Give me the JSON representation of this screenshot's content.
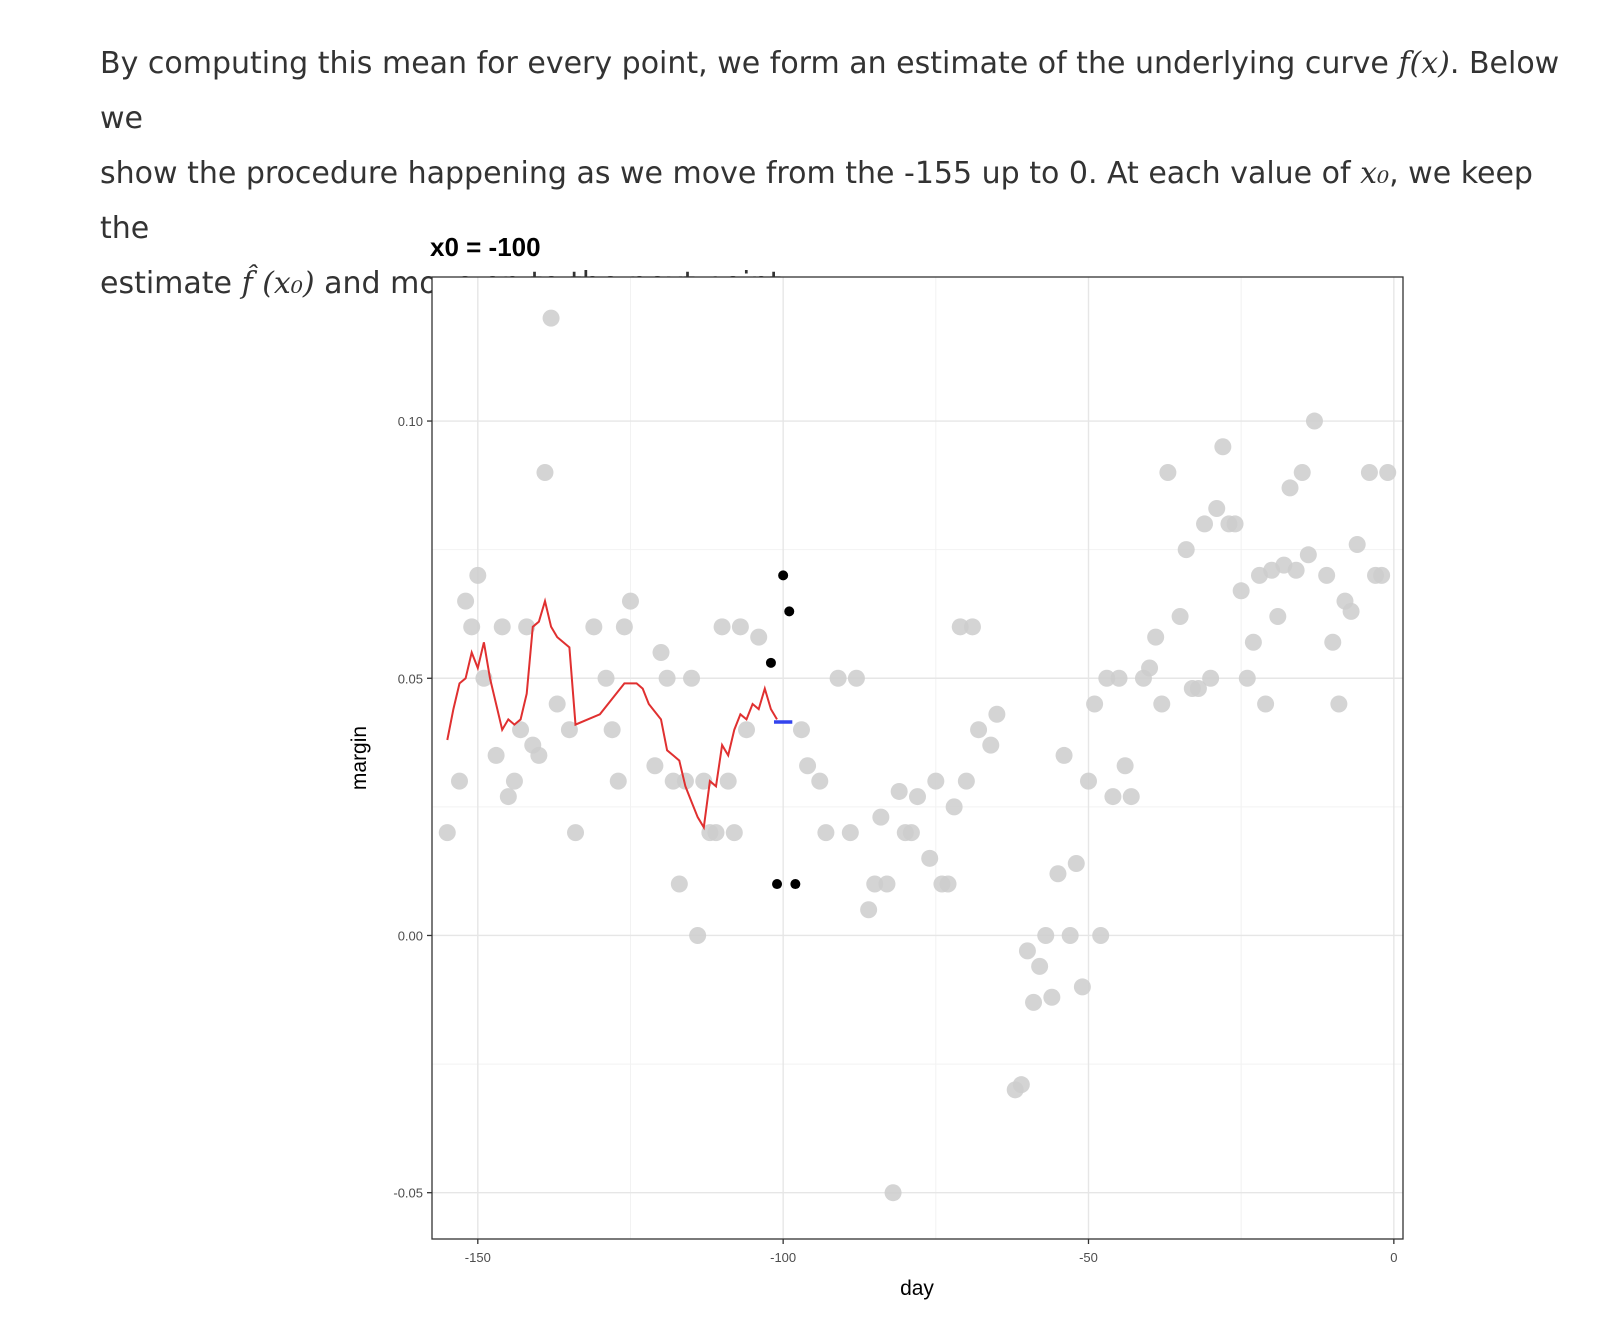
{
  "text": {
    "line1_a": "By computing this mean for every point, we form an estimate of the underlying curve",
    "line1_math": "f(x)",
    "line1_b": ". Below we",
    "line2_a": "show the procedure happening as we move from the -155 up to 0. At each value of",
    "line2_math": "x₀",
    "line2_b": ", we keep the",
    "line3_a": "estimate",
    "line3_math": "f̂ (x₀)",
    "line3_b": "and move on to the next point:"
  },
  "chart_data": {
    "type": "scatter",
    "title": "x0 =  -100",
    "xlabel": "day",
    "ylabel": "margin",
    "xlim": [
      -157.5,
      1.5
    ],
    "ylim": [
      -0.059,
      0.128
    ],
    "x_ticks": [
      -150,
      -100,
      -50,
      0
    ],
    "x_tick_labels": [
      "-150",
      "-100",
      "-50",
      "0"
    ],
    "y_ticks": [
      -0.05,
      0.0,
      0.05,
      0.1
    ],
    "y_tick_labels": [
      "-0.05",
      "0.00",
      "0.05",
      "0.10"
    ],
    "grid": true,
    "colors": {
      "points": "#cccccc",
      "highlight": "#000000",
      "fit": "#e03030",
      "estimate": "#3344ee"
    },
    "points": [
      [
        -155,
        0.02
      ],
      [
        -153,
        0.03
      ],
      [
        -152,
        0.065
      ],
      [
        -151,
        0.06
      ],
      [
        -150,
        0.07
      ],
      [
        -149,
        0.05
      ],
      [
        -147,
        0.035
      ],
      [
        -146,
        0.06
      ],
      [
        -145,
        0.027
      ],
      [
        -144,
        0.03
      ],
      [
        -143,
        0.04
      ],
      [
        -142,
        0.06
      ],
      [
        -141,
        0.037
      ],
      [
        -140,
        0.035
      ],
      [
        -139,
        0.09
      ],
      [
        -138,
        0.12
      ],
      [
        -137,
        0.045
      ],
      [
        -135,
        0.04
      ],
      [
        -134,
        0.02
      ],
      [
        -131,
        0.06
      ],
      [
        -129,
        0.05
      ],
      [
        -128,
        0.04
      ],
      [
        -127,
        0.03
      ],
      [
        -126,
        0.06
      ],
      [
        -125,
        0.065
      ],
      [
        -121,
        0.033
      ],
      [
        -120,
        0.055
      ],
      [
        -119,
        0.05
      ],
      [
        -118,
        0.03
      ],
      [
        -117,
        0.01
      ],
      [
        -116,
        0.03
      ],
      [
        -115,
        0.05
      ],
      [
        -114,
        0.0
      ],
      [
        -113,
        0.03
      ],
      [
        -112,
        0.02
      ],
      [
        -111,
        0.02
      ],
      [
        -110,
        0.06
      ],
      [
        -109,
        0.03
      ],
      [
        -108,
        0.02
      ],
      [
        -107,
        0.06
      ],
      [
        -106,
        0.04
      ],
      [
        -104,
        0.058
      ],
      [
        -97,
        0.04
      ],
      [
        -96,
        0.033
      ],
      [
        -94,
        0.03
      ],
      [
        -93,
        0.02
      ],
      [
        -91,
        0.05
      ],
      [
        -89,
        0.02
      ],
      [
        -88,
        0.05
      ],
      [
        -86,
        0.005
      ],
      [
        -85,
        0.01
      ],
      [
        -84,
        0.023
      ],
      [
        -83,
        0.01
      ],
      [
        -82,
        -0.05
      ],
      [
        -81,
        0.028
      ],
      [
        -80,
        0.02
      ],
      [
        -79,
        0.02
      ],
      [
        -78,
        0.027
      ],
      [
        -76,
        0.015
      ],
      [
        -75,
        0.03
      ],
      [
        -74,
        0.01
      ],
      [
        -73,
        0.01
      ],
      [
        -72,
        0.025
      ],
      [
        -71,
        0.06
      ],
      [
        -70,
        0.03
      ],
      [
        -69,
        0.06
      ],
      [
        -68,
        0.04
      ],
      [
        -66,
        0.037
      ],
      [
        -65,
        0.043
      ],
      [
        -62,
        -0.03
      ],
      [
        -61,
        -0.029
      ],
      [
        -60,
        -0.003
      ],
      [
        -59,
        -0.013
      ],
      [
        -58,
        -0.006
      ],
      [
        -57,
        0.0
      ],
      [
        -56,
        -0.012
      ],
      [
        -55,
        0.012
      ],
      [
        -54,
        0.035
      ],
      [
        -53,
        0.0
      ],
      [
        -52,
        0.014
      ],
      [
        -51,
        -0.01
      ],
      [
        -50,
        0.03
      ],
      [
        -49,
        0.045
      ],
      [
        -48,
        0.0
      ],
      [
        -47,
        0.05
      ],
      [
        -46,
        0.027
      ],
      [
        -45,
        0.05
      ],
      [
        -44,
        0.033
      ],
      [
        -43,
        0.027
      ],
      [
        -41,
        0.05
      ],
      [
        -40,
        0.052
      ],
      [
        -39,
        0.058
      ],
      [
        -38,
        0.045
      ],
      [
        -37,
        0.09
      ],
      [
        -35,
        0.062
      ],
      [
        -34,
        0.075
      ],
      [
        -33,
        0.048
      ],
      [
        -32,
        0.048
      ],
      [
        -31,
        0.08
      ],
      [
        -30,
        0.05
      ],
      [
        -29,
        0.083
      ],
      [
        -28,
        0.095
      ],
      [
        -27,
        0.08
      ],
      [
        -26,
        0.08
      ],
      [
        -25,
        0.067
      ],
      [
        -24,
        0.05
      ],
      [
        -23,
        0.057
      ],
      [
        -22,
        0.07
      ],
      [
        -21,
        0.045
      ],
      [
        -20,
        0.071
      ],
      [
        -19,
        0.062
      ],
      [
        -18,
        0.072
      ],
      [
        -17,
        0.087
      ],
      [
        -16,
        0.071
      ],
      [
        -15,
        0.09
      ],
      [
        -14,
        0.074
      ],
      [
        -13,
        0.1
      ],
      [
        -11,
        0.07
      ],
      [
        -10,
        0.057
      ],
      [
        -9,
        0.045
      ],
      [
        -8,
        0.065
      ],
      [
        -7,
        0.063
      ],
      [
        -6,
        0.076
      ],
      [
        -4,
        0.09
      ],
      [
        -3,
        0.07
      ],
      [
        -2,
        0.07
      ],
      [
        -1,
        0.09
      ]
    ],
    "highlighted_points": [
      [
        -102,
        0.053
      ],
      [
        -101,
        0.01
      ],
      [
        -100,
        0.07
      ],
      [
        -99,
        0.063
      ],
      [
        -98,
        0.01
      ]
    ],
    "fit_line": [
      [
        -155,
        0.038
      ],
      [
        -154,
        0.044
      ],
      [
        -153,
        0.049
      ],
      [
        -152,
        0.05
      ],
      [
        -151,
        0.055
      ],
      [
        -150,
        0.052
      ],
      [
        -149,
        0.057
      ],
      [
        -148,
        0.05
      ],
      [
        -147,
        0.045
      ],
      [
        -146,
        0.04
      ],
      [
        -145,
        0.042
      ],
      [
        -144,
        0.041
      ],
      [
        -143,
        0.042
      ],
      [
        -142,
        0.047
      ],
      [
        -141,
        0.06
      ],
      [
        -140,
        0.061
      ],
      [
        -139,
        0.065
      ],
      [
        -138,
        0.06
      ],
      [
        -137,
        0.058
      ],
      [
        -136,
        0.057
      ],
      [
        -135,
        0.056
      ],
      [
        -134,
        0.041
      ],
      [
        -132,
        0.042
      ],
      [
        -130,
        0.043
      ],
      [
        -128,
        0.046
      ],
      [
        -126,
        0.049
      ],
      [
        -124,
        0.049
      ],
      [
        -123,
        0.048
      ],
      [
        -122,
        0.045
      ],
      [
        -120,
        0.042
      ],
      [
        -119,
        0.036
      ],
      [
        -118,
        0.035
      ],
      [
        -117,
        0.034
      ],
      [
        -116,
        0.029
      ],
      [
        -115,
        0.026
      ],
      [
        -114,
        0.023
      ],
      [
        -113,
        0.021
      ],
      [
        -112,
        0.03
      ],
      [
        -111,
        0.029
      ],
      [
        -110,
        0.037
      ],
      [
        -109,
        0.035
      ],
      [
        -108,
        0.04
      ],
      [
        -107,
        0.043
      ],
      [
        -106,
        0.042
      ],
      [
        -105,
        0.045
      ],
      [
        -104,
        0.044
      ],
      [
        -103,
        0.048
      ],
      [
        -102,
        0.044
      ],
      [
        -101,
        0.042
      ]
    ],
    "estimate_segment": {
      "x": [
        -101.5,
        -98.5
      ],
      "y": 0.0415
    }
  }
}
